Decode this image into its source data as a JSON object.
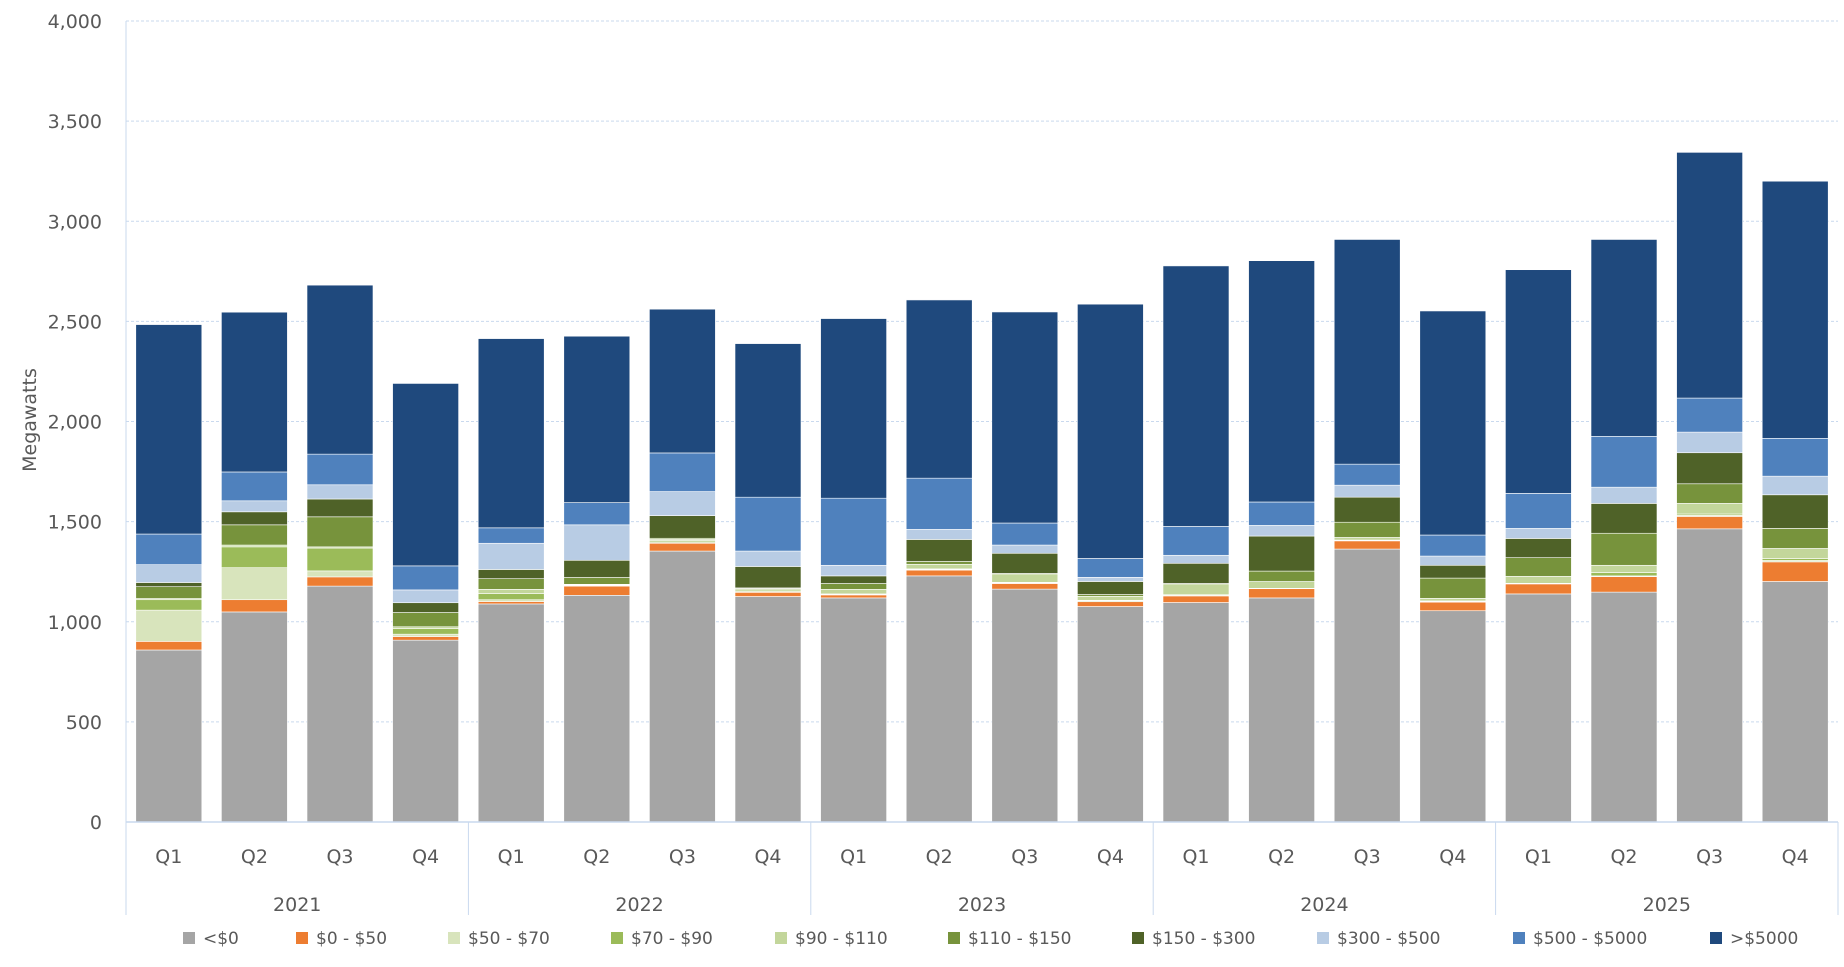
{
  "chart_data": {
    "type": "bar",
    "stacked": true,
    "title": "",
    "ylabel": "Megawatts",
    "xlabel": "",
    "ylim": [
      0,
      4000
    ],
    "yticks": [
      0,
      500,
      1000,
      1500,
      2000,
      2500,
      3000,
      3500,
      4000
    ],
    "ytick_labels": [
      "0",
      "500",
      "1,000",
      "1,500",
      "2,000",
      "2,500",
      "3,000",
      "3,500",
      "4,000"
    ],
    "grid": true,
    "legend_position": "bottom",
    "groups": [
      {
        "label": "2021",
        "categories": [
          "Q1",
          "Q2",
          "Q3",
          "Q4"
        ]
      },
      {
        "label": "2022",
        "categories": [
          "Q1",
          "Q2",
          "Q3",
          "Q4"
        ]
      },
      {
        "label": "2023",
        "categories": [
          "Q1",
          "Q2",
          "Q3",
          "Q4"
        ]
      },
      {
        "label": "2024",
        "categories": [
          "Q1",
          "Q2",
          "Q3",
          "Q4"
        ]
      },
      {
        "label": "2025",
        "categories": [
          "Q1",
          "Q2",
          "Q3",
          "Q4"
        ]
      }
    ],
    "series": [
      {
        "name": "<$0",
        "color": "#a5a5a5",
        "values": [
          859,
          1049,
          1178,
          908,
          1089,
          1132,
          1353,
          1126,
          1119,
          1229,
          1163,
          1076,
          1096,
          1119,
          1363,
          1055,
          1139,
          1148,
          1464,
          1201
        ]
      },
      {
        "name": "$0 - $50",
        "color": "#ed7d31",
        "values": [
          43,
          61,
          46,
          18,
          12,
          46,
          39,
          21,
          15,
          29,
          28,
          24,
          33,
          46,
          41,
          43,
          50,
          77,
          62,
          98
        ]
      },
      {
        "name": "$50 - $70",
        "color": "#d8e4bc",
        "values": [
          156,
          160,
          30,
          12,
          9,
          3,
          7,
          6,
          2,
          3,
          3,
          5,
          4,
          2,
          2,
          3,
          3,
          4,
          5,
          7
        ]
      },
      {
        "name": "$70 - $90",
        "color": "#9bbb59",
        "values": [
          52,
          104,
          114,
          28,
          31,
          3,
          6,
          6,
          3,
          3,
          3,
          2,
          2,
          0,
          2,
          3,
          0,
          17,
          7,
          10
        ]
      },
      {
        "name": "$90 - $110",
        "color": "#c3d69b",
        "values": [
          6,
          9,
          6,
          9,
          21,
          3,
          6,
          6,
          23,
          23,
          42,
          20,
          54,
          34,
          13,
          13,
          35,
          36,
          53,
          50
        ]
      },
      {
        "name": "$110 - $150",
        "color": "#77933c",
        "values": [
          59,
          101,
          150,
          71,
          53,
          34,
          6,
          4,
          29,
          14,
          2,
          9,
          2,
          52,
          76,
          101,
          93,
          160,
          98,
          100
        ]
      },
      {
        "name": "$150 - $300",
        "color": "#4f6228",
        "values": [
          21,
          65,
          89,
          49,
          46,
          86,
          113,
          107,
          38,
          110,
          101,
          65,
          101,
          175,
          125,
          64,
          96,
          149,
          155,
          168
        ]
      },
      {
        "name": "$300 - $500",
        "color": "#b8cce4",
        "values": [
          89,
          55,
          71,
          64,
          131,
          177,
          120,
          77,
          53,
          50,
          41,
          21,
          40,
          53,
          60,
          46,
          50,
          81,
          103,
          93
        ]
      },
      {
        "name": "$500 - $5000",
        "color": "#4f81bd",
        "values": [
          153,
          144,
          153,
          120,
          77,
          111,
          193,
          269,
          335,
          256,
          110,
          94,
          144,
          117,
          105,
          105,
          175,
          254,
          170,
          189
        ]
      },
      {
        "name": ">$5000",
        "color": "#1f497d",
        "values": [
          1046,
          798,
          844,
          911,
          945,
          831,
          718,
          767,
          897,
          890,
          1054,
          1270,
          1301,
          1205,
          1122,
          1119,
          1117,
          983,
          1227,
          1284
        ]
      }
    ]
  }
}
